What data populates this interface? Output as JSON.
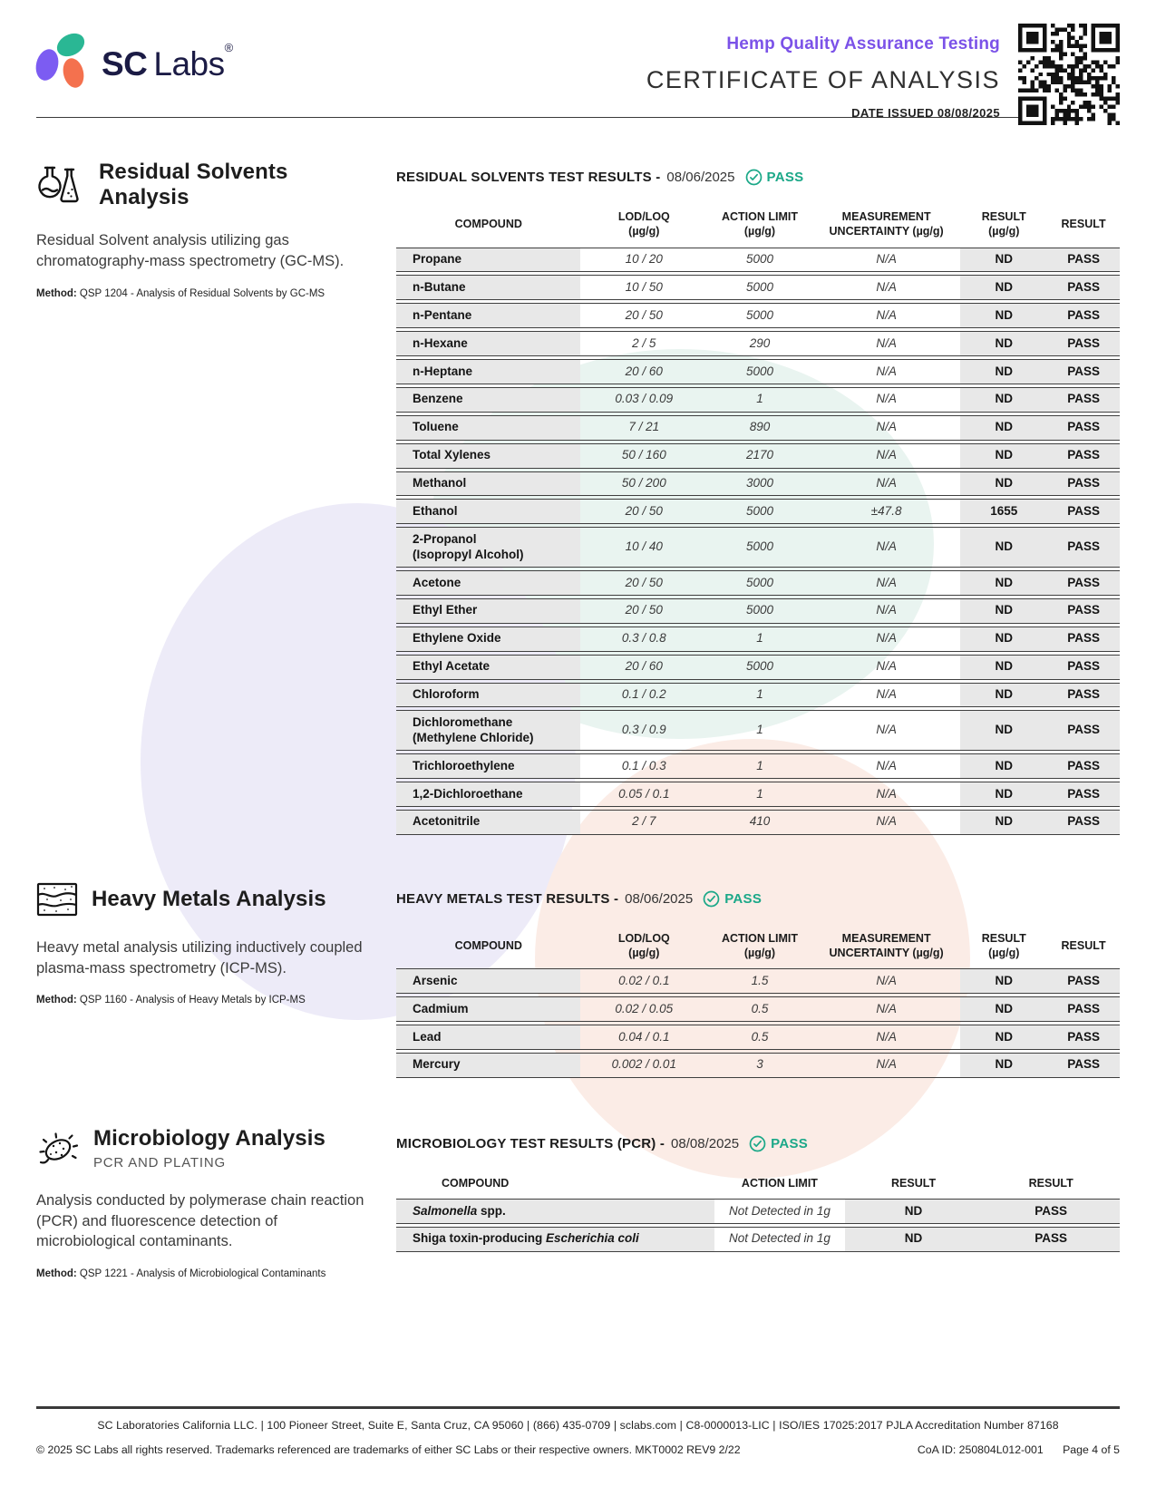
{
  "header": {
    "brand_sc": "SC",
    "brand_labs": "Labs",
    "brand_reg": "®",
    "subtitle": "Hemp Quality Assurance Testing",
    "title": "CERTIFICATE OF ANALYSIS",
    "date_issued": "DATE ISSUED 08/08/2025"
  },
  "colors": {
    "accent_purple": "#7B52E8",
    "pass_teal": "#1BA888",
    "logo_navy": "#1B1B45",
    "logo_purple": "#7C5CF2",
    "logo_teal": "#2AB794",
    "logo_orange": "#F4714E",
    "cell_gray": "#E8E8E8",
    "blob_teal": "#E9F4F0",
    "blob_purple": "#EDEBF8",
    "blob_pink": "#FBECE6"
  },
  "solvents": {
    "title": "Residual Solvents Analysis",
    "description": "Residual Solvent analysis utilizing gas chromatography-mass spectrometry (GC-MS).",
    "method_label": "Method:",
    "method": "QSP 1204 - Analysis of Residual Solvents by GC-MS",
    "results_heading": "RESIDUAL SOLVENTS TEST RESULTS -",
    "results_date": "08/06/2025",
    "pass_label": "PASS",
    "headers": {
      "compound": "COMPOUND",
      "lodloq": "LOD/LOQ<br>(µg/g)",
      "action": "ACTION LIMIT<br>(µg/g)",
      "uncert": "MEASUREMENT<br>UNCERTAINTY (µg/g)",
      "result": "RESULT<br>(µg/g)",
      "pass": "RESULT"
    },
    "rows": [
      {
        "compound": "Propane",
        "lodloq": "10 / 20",
        "action": "5000",
        "uncert": "N/A",
        "result": "ND",
        "pass": "PASS"
      },
      {
        "compound": "n-Butane",
        "lodloq": "10 / 50",
        "action": "5000",
        "uncert": "N/A",
        "result": "ND",
        "pass": "PASS"
      },
      {
        "compound": "n-Pentane",
        "lodloq": "20 / 50",
        "action": "5000",
        "uncert": "N/A",
        "result": "ND",
        "pass": "PASS"
      },
      {
        "compound": "n-Hexane",
        "lodloq": "2 / 5",
        "action": "290",
        "uncert": "N/A",
        "result": "ND",
        "pass": "PASS"
      },
      {
        "compound": "n-Heptane",
        "lodloq": "20 / 60",
        "action": "5000",
        "uncert": "N/A",
        "result": "ND",
        "pass": "PASS"
      },
      {
        "compound": "Benzene",
        "lodloq": "0.03 / 0.09",
        "action": "1",
        "uncert": "N/A",
        "result": "ND",
        "pass": "PASS"
      },
      {
        "compound": "Toluene",
        "lodloq": "7 / 21",
        "action": "890",
        "uncert": "N/A",
        "result": "ND",
        "pass": "PASS"
      },
      {
        "compound": "Total Xylenes",
        "lodloq": "50 / 160",
        "action": "2170",
        "uncert": "N/A",
        "result": "ND",
        "pass": "PASS"
      },
      {
        "compound": "Methanol",
        "lodloq": "50 / 200",
        "action": "3000",
        "uncert": "N/A",
        "result": "ND",
        "pass": "PASS"
      },
      {
        "compound": "Ethanol",
        "lodloq": "20 / 50",
        "action": "5000",
        "uncert": "±47.8",
        "result": "1655",
        "pass": "PASS"
      },
      {
        "compound": "2-Propanol<br>(Isopropyl Alcohol)",
        "lodloq": "10 / 40",
        "action": "5000",
        "uncert": "N/A",
        "result": "ND",
        "pass": "PASS"
      },
      {
        "compound": "Acetone",
        "lodloq": "20 / 50",
        "action": "5000",
        "uncert": "N/A",
        "result": "ND",
        "pass": "PASS"
      },
      {
        "compound": "Ethyl Ether",
        "lodloq": "20 / 50",
        "action": "5000",
        "uncert": "N/A",
        "result": "ND",
        "pass": "PASS"
      },
      {
        "compound": "Ethylene Oxide",
        "lodloq": "0.3 / 0.8",
        "action": "1",
        "uncert": "N/A",
        "result": "ND",
        "pass": "PASS"
      },
      {
        "compound": "Ethyl Acetate",
        "lodloq": "20 / 60",
        "action": "5000",
        "uncert": "N/A",
        "result": "ND",
        "pass": "PASS"
      },
      {
        "compound": "Chloroform",
        "lodloq": "0.1 / 0.2",
        "action": "1",
        "uncert": "N/A",
        "result": "ND",
        "pass": "PASS"
      },
      {
        "compound": "Dichloromethane<br>(Methylene Chloride)",
        "lodloq": "0.3 / 0.9",
        "action": "1",
        "uncert": "N/A",
        "result": "ND",
        "pass": "PASS"
      },
      {
        "compound": "Trichloroethylene",
        "lodloq": "0.1 / 0.3",
        "action": "1",
        "uncert": "N/A",
        "result": "ND",
        "pass": "PASS"
      },
      {
        "compound": "1,2-Dichloroethane",
        "lodloq": "0.05 / 0.1",
        "action": "1",
        "uncert": "N/A",
        "result": "ND",
        "pass": "PASS"
      },
      {
        "compound": "Acetonitrile",
        "lodloq": "2 / 7",
        "action": "410",
        "uncert": "N/A",
        "result": "ND",
        "pass": "PASS"
      }
    ]
  },
  "metals": {
    "title": "Heavy Metals Analysis",
    "description": "Heavy metal analysis utilizing inductively coupled plasma-mass spectrometry (ICP-MS).",
    "method_label": "Method:",
    "method": "QSP 1160 - Analysis of Heavy Metals by ICP-MS",
    "results_heading": "HEAVY METALS TEST RESULTS -",
    "results_date": "08/06/2025",
    "pass_label": "PASS",
    "headers": {
      "compound": "COMPOUND",
      "lodloq": "LOD/LOQ<br>(µg/g)",
      "action": "ACTION LIMIT<br>(µg/g)",
      "uncert": "MEASUREMENT<br>UNCERTAINTY (µg/g)",
      "result": "RESULT<br>(µg/g)",
      "pass": "RESULT"
    },
    "rows": [
      {
        "compound": "Arsenic",
        "lodloq": "0.02 / 0.1",
        "action": "1.5",
        "uncert": "N/A",
        "result": "ND",
        "pass": "PASS"
      },
      {
        "compound": "Cadmium",
        "lodloq": "0.02 / 0.05",
        "action": "0.5",
        "uncert": "N/A",
        "result": "ND",
        "pass": "PASS"
      },
      {
        "compound": "Lead",
        "lodloq": "0.04 / 0.1",
        "action": "0.5",
        "uncert": "N/A",
        "result": "ND",
        "pass": "PASS"
      },
      {
        "compound": "Mercury",
        "lodloq": "0.002 / 0.01",
        "action": "3",
        "uncert": "N/A",
        "result": "ND",
        "pass": "PASS"
      }
    ]
  },
  "micro": {
    "title": "Microbiology Analysis",
    "subtitle": "PCR AND PLATING",
    "description": "Analysis conducted by polymerase chain reaction (PCR) and fluorescence detection of microbiological contaminants.",
    "method_label": "Method:",
    "method": "QSP 1221 - Analysis of Microbiological Contaminants",
    "results_heading": "MICROBIOLOGY TEST RESULTS (PCR) -",
    "results_date": "08/08/2025",
    "pass_label": "PASS",
    "headers": {
      "compound": "COMPOUND",
      "action": "ACTION LIMIT",
      "result": "RESULT",
      "pass": "RESULT"
    },
    "rows": [
      {
        "compound": "<i>Salmonella</i> spp.",
        "action": "Not Detected in 1g",
        "result": "ND",
        "pass": "PASS"
      },
      {
        "compound": "Shiga toxin-producing <i>Escherichia coli</i>",
        "action": "Not Detected in 1g",
        "result": "ND",
        "pass": "PASS"
      }
    ]
  },
  "footer": {
    "line1": "SC Laboratories California LLC. | 100 Pioneer Street, Suite E, Santa Cruz, CA 95060 | (866) 435-0709 | sclabs.com | C8-0000013-LIC | ISO/IES 17025:2017 PJLA Accreditation Number 87168",
    "line2": "© 2025 SC Labs all rights reserved. Trademarks referenced are trademarks of either SC Labs or their respective owners. MKT0002 REV9 2/22",
    "coa_id": "CoA ID: 250804L012-001",
    "page": "Page 4 of 5"
  }
}
